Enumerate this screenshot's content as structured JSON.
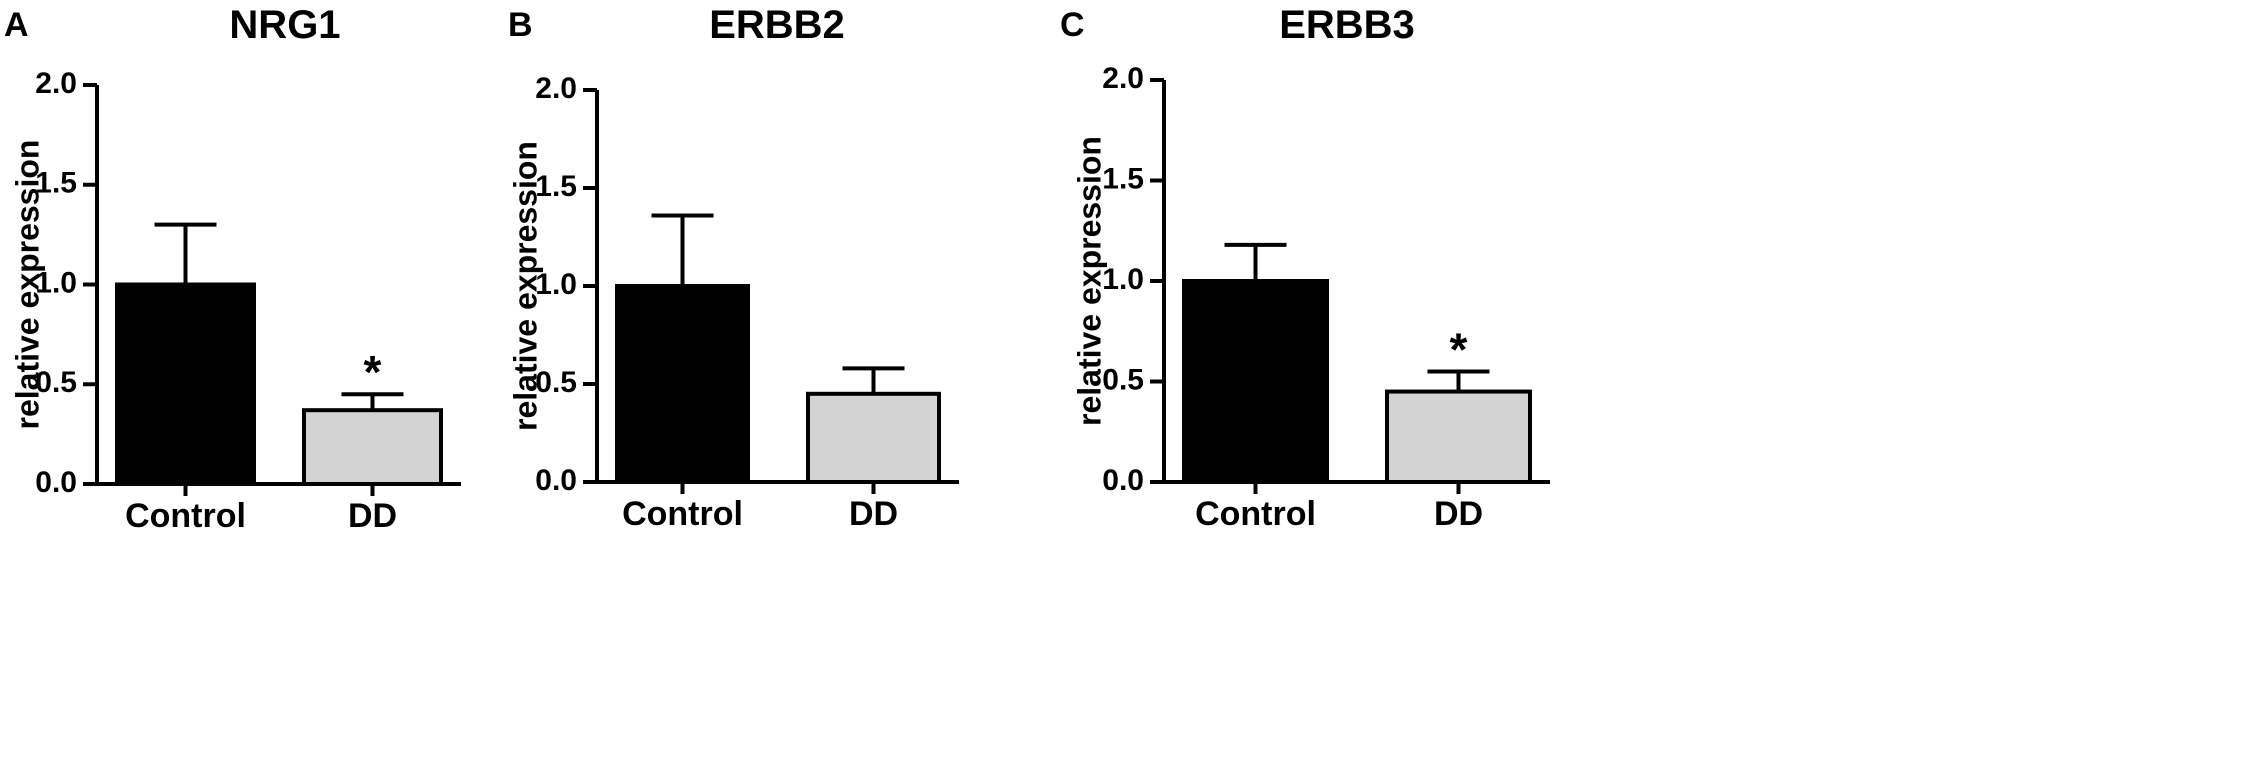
{
  "figure": {
    "panels": [
      {
        "letter": "A",
        "chart_index": 0
      },
      {
        "letter": "B",
        "chart_index": 1
      },
      {
        "letter": "C",
        "chart_index": 2
      }
    ]
  },
  "chart_data": [
    {
      "type": "bar",
      "title": "NRG1",
      "ylabel": "relative expression",
      "xlabel": "",
      "ylim": [
        0,
        2.0
      ],
      "yticks": [
        "0.0",
        "0.5",
        "1.0",
        "1.5",
        "2.0"
      ],
      "categories": [
        "Control",
        "DD"
      ],
      "values": [
        1.0,
        0.37
      ],
      "errors": [
        0.3,
        0.08
      ],
      "bar_colors": [
        "#000000",
        "#d3d3d3"
      ],
      "annotations": [
        "",
        "*"
      ],
      "grid": false,
      "legend": "none"
    },
    {
      "type": "bar",
      "title": "ERBB2",
      "ylabel": "relative expression",
      "xlabel": "",
      "ylim": [
        0,
        2.0
      ],
      "yticks": [
        "0.0",
        "0.5",
        "1.0",
        "1.5",
        "2.0"
      ],
      "categories": [
        "Control",
        "DD"
      ],
      "values": [
        1.0,
        0.45
      ],
      "errors": [
        0.36,
        0.13
      ],
      "bar_colors": [
        "#000000",
        "#d3d3d3"
      ],
      "annotations": [
        "",
        ""
      ],
      "grid": false,
      "legend": "none"
    },
    {
      "type": "bar",
      "title": "ERBB3",
      "ylabel": "relative expression",
      "xlabel": "",
      "ylim": [
        0,
        2.0
      ],
      "yticks": [
        "0.0",
        "0.5",
        "1.0",
        "1.5",
        "2.0"
      ],
      "categories": [
        "Control",
        "DD"
      ],
      "values": [
        1.0,
        0.45
      ],
      "errors": [
        0.18,
        0.1
      ],
      "bar_colors": [
        "#000000",
        "#d3d3d3"
      ],
      "annotations": [
        "",
        "*"
      ],
      "grid": false,
      "legend": "none"
    }
  ]
}
